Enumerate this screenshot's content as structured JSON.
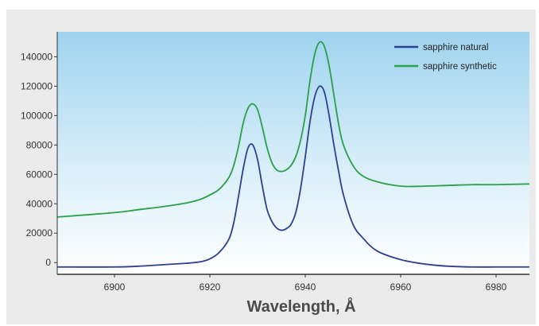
{
  "chart_data": {
    "type": "line",
    "title": "",
    "xlabel": "Wavelength, Å",
    "ylabel": "",
    "xlim": [
      6888,
      6987
    ],
    "ylim": [
      -8000,
      157000
    ],
    "x_ticks": [
      6900,
      6920,
      6940,
      6960,
      6980
    ],
    "x_tick_labels": [
      "6900",
      "6920",
      "6940",
      "6960",
      "6980"
    ],
    "y_ticks": [
      0,
      20000,
      40000,
      60000,
      80000,
      100000,
      120000,
      140000
    ],
    "y_tick_labels": [
      "0",
      "20000",
      "40000",
      "60000",
      "80000",
      "100000",
      "120000",
      "140000"
    ],
    "grid": false,
    "legend_position": "top-right",
    "series": [
      {
        "name": "sapphire natural",
        "color": "#2e3f8f",
        "x": [
          6888,
          6900,
          6905,
          6910,
          6915,
          6918,
          6920,
          6922,
          6924,
          6925,
          6926,
          6927,
          6928,
          6929,
          6930,
          6931,
          6932,
          6933,
          6934,
          6935,
          6936,
          6937,
          6938,
          6939,
          6940,
          6941,
          6942,
          6943,
          6944,
          6945,
          6946,
          6947,
          6948,
          6950,
          6952,
          6955,
          6960,
          6965,
          6970,
          6975,
          6980,
          6987
        ],
        "y": [
          -3000,
          -3000,
          -2500,
          -1500,
          -500,
          500,
          2500,
          7000,
          16000,
          27000,
          45000,
          64000,
          78000,
          80000,
          70000,
          52000,
          36000,
          28000,
          23500,
          22000,
          23000,
          26000,
          34000,
          50000,
          72000,
          96000,
          113000,
          120000,
          116000,
          100000,
          80000,
          62000,
          46000,
          26000,
          17000,
          8000,
          2000,
          -1000,
          -2500,
          -3000,
          -3000,
          -3000
        ]
      },
      {
        "name": "sapphire synthetic",
        "color": "#2aa04a",
        "x": [
          6888,
          6900,
          6905,
          6910,
          6915,
          6918,
          6920,
          6922,
          6924,
          6925,
          6926,
          6927,
          6928,
          6929,
          6930,
          6931,
          6932,
          6933,
          6934,
          6935,
          6936,
          6937,
          6938,
          6939,
          6940,
          6941,
          6942,
          6943,
          6944,
          6945,
          6946,
          6947,
          6948,
          6950,
          6952,
          6955,
          6960,
          6965,
          6970,
          6975,
          6980,
          6987
        ],
        "y": [
          31000,
          34000,
          36000,
          38000,
          40500,
          43000,
          46000,
          50000,
          58000,
          66000,
          79000,
          95000,
          105000,
          108000,
          104000,
          92000,
          78000,
          68000,
          63000,
          62000,
          63000,
          66000,
          72000,
          83000,
          100000,
          124000,
          142000,
          150000,
          147000,
          134000,
          114000,
          94000,
          80000,
          66000,
          59000,
          55000,
          52000,
          52000,
          52500,
          53000,
          53000,
          53500
        ]
      }
    ]
  }
}
